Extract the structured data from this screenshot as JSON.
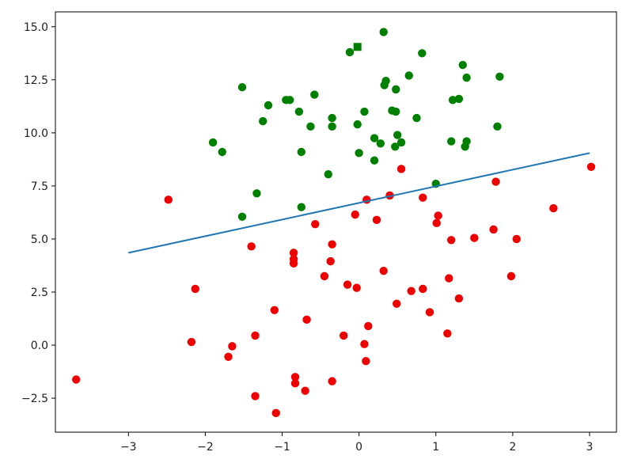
{
  "chart_data": {
    "type": "scatter",
    "title": "",
    "xlabel": "",
    "ylabel": "",
    "xlim": [
      -3.95,
      3.35
    ],
    "ylim": [
      -4.1,
      15.7
    ],
    "xticks": [
      "−3",
      "−2",
      "−1",
      "0",
      "1",
      "2",
      "3"
    ],
    "yticks": [
      "−2.5",
      "0.0",
      "2.5",
      "5.0",
      "7.5",
      "10.0",
      "12.5",
      "15.0"
    ],
    "grid": false,
    "legend": "none",
    "colors": {
      "series_a": "#008000",
      "series_b": "#ee0000",
      "line": "#1f77b4"
    },
    "series": [
      {
        "marker": "circle",
        "color": "#008000",
        "points": [
          [
            0.32,
            14.75
          ],
          [
            -0.12,
            13.8
          ],
          [
            0.82,
            13.75
          ],
          [
            1.35,
            13.2
          ],
          [
            0.65,
            12.7
          ],
          [
            1.83,
            12.65
          ],
          [
            1.4,
            12.6
          ],
          [
            0.35,
            12.45
          ],
          [
            0.33,
            12.25
          ],
          [
            -1.52,
            12.15
          ],
          [
            0.48,
            12.05
          ],
          [
            -0.58,
            11.8
          ],
          [
            1.22,
            11.55
          ],
          [
            1.3,
            11.6
          ],
          [
            -0.95,
            11.55
          ],
          [
            -0.9,
            11.55
          ],
          [
            -1.18,
            11.3
          ],
          [
            0.43,
            11.05
          ],
          [
            0.48,
            11.0
          ],
          [
            0.07,
            11.0
          ],
          [
            -0.78,
            11.0
          ],
          [
            -0.35,
            10.7
          ],
          [
            0.75,
            10.7
          ],
          [
            -1.25,
            10.55
          ],
          [
            -0.02,
            10.4
          ],
          [
            -0.63,
            10.3
          ],
          [
            -0.35,
            10.3
          ],
          [
            1.8,
            10.3
          ],
          [
            0.5,
            9.9
          ],
          [
            0.2,
            9.75
          ],
          [
            0.55,
            9.55
          ],
          [
            1.2,
            9.6
          ],
          [
            1.4,
            9.6
          ],
          [
            0.28,
            9.5
          ],
          [
            -1.9,
            9.55
          ],
          [
            0.47,
            9.35
          ],
          [
            1.38,
            9.35
          ],
          [
            -1.78,
            9.1
          ],
          [
            -0.75,
            9.1
          ],
          [
            0.0,
            9.05
          ],
          [
            0.2,
            8.7
          ],
          [
            -0.4,
            8.05
          ],
          [
            1.0,
            7.6
          ],
          [
            -1.33,
            7.15
          ],
          [
            -0.75,
            6.5
          ],
          [
            -1.52,
            6.05
          ]
        ]
      },
      {
        "marker": "square",
        "color": "#008000",
        "points": [
          [
            -0.02,
            14.05
          ]
        ]
      },
      {
        "marker": "circle",
        "color": "#ee0000",
        "points": [
          [
            3.02,
            8.4
          ],
          [
            0.55,
            8.3
          ],
          [
            1.78,
            7.7
          ],
          [
            -2.48,
            6.85
          ],
          [
            0.83,
            6.95
          ],
          [
            0.4,
            7.05
          ],
          [
            0.1,
            6.85
          ],
          [
            2.53,
            6.45
          ],
          [
            -0.05,
            6.15
          ],
          [
            1.03,
            6.1
          ],
          [
            0.23,
            5.9
          ],
          [
            1.01,
            5.75
          ],
          [
            -0.57,
            5.7
          ],
          [
            1.75,
            5.45
          ],
          [
            1.5,
            5.05
          ],
          [
            2.05,
            5.0
          ],
          [
            1.2,
            4.95
          ],
          [
            -0.35,
            4.75
          ],
          [
            -1.4,
            4.65
          ],
          [
            -0.85,
            4.35
          ],
          [
            -0.85,
            4.05
          ],
          [
            -0.85,
            3.85
          ],
          [
            -0.37,
            3.95
          ],
          [
            0.32,
            3.5
          ],
          [
            -0.45,
            3.25
          ],
          [
            1.17,
            3.15
          ],
          [
            1.98,
            3.25
          ],
          [
            -0.15,
            2.85
          ],
          [
            -0.03,
            2.7
          ],
          [
            -2.13,
            2.65
          ],
          [
            0.83,
            2.65
          ],
          [
            0.68,
            2.55
          ],
          [
            1.3,
            2.2
          ],
          [
            0.49,
            1.95
          ],
          [
            -1.1,
            1.65
          ],
          [
            0.92,
            1.55
          ],
          [
            -0.68,
            1.2
          ],
          [
            0.12,
            0.9
          ],
          [
            1.15,
            0.55
          ],
          [
            -0.2,
            0.45
          ],
          [
            -1.35,
            0.45
          ],
          [
            -2.18,
            0.15
          ],
          [
            0.07,
            0.05
          ],
          [
            -1.65,
            -0.05
          ],
          [
            -1.7,
            -0.55
          ],
          [
            0.09,
            -0.75
          ],
          [
            -0.83,
            -1.5
          ],
          [
            -0.35,
            -1.7
          ],
          [
            -0.83,
            -1.8
          ],
          [
            -3.68,
            -1.62
          ],
          [
            -0.7,
            -2.15
          ],
          [
            -1.35,
            -2.4
          ],
          [
            -1.08,
            -3.2
          ]
        ]
      }
    ],
    "line": {
      "x": [
        -3,
        3
      ],
      "y": [
        4.35,
        9.05
      ]
    }
  }
}
